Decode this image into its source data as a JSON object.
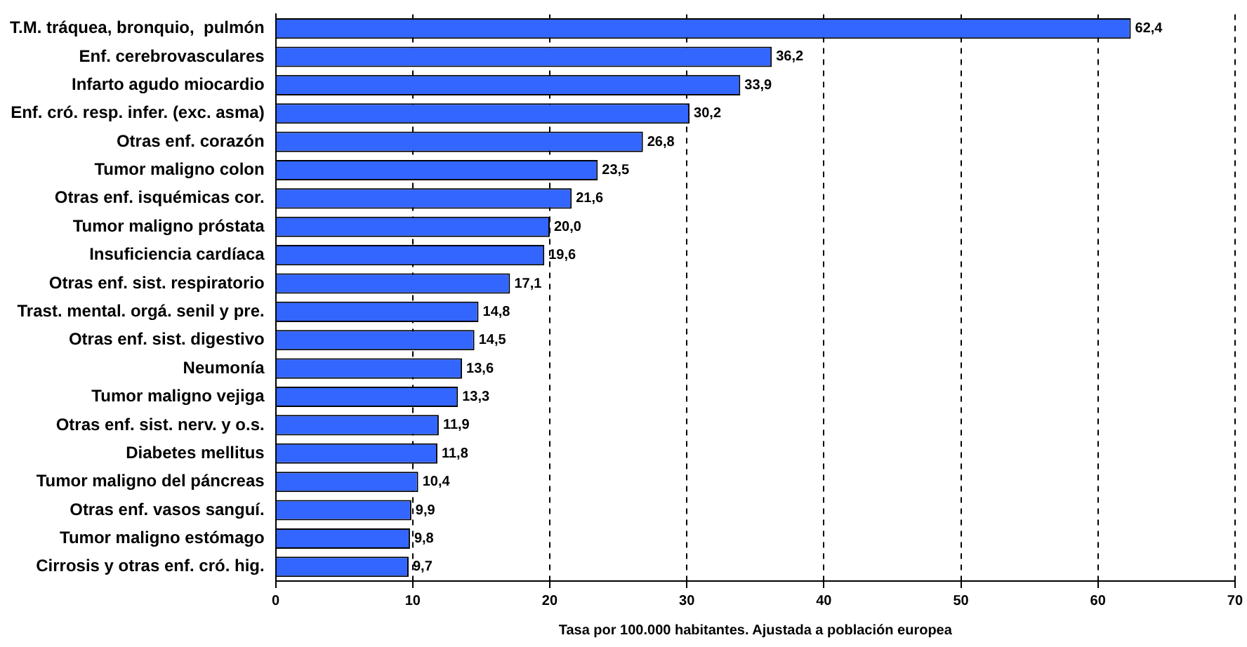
{
  "chart_data": {
    "type": "bar",
    "orientation": "horizontal",
    "xlabel": "Tasa por 100.000 habitantes. Ajustada a población europea",
    "categories": [
      "T.M. tráquea, bronquio,  pulmón",
      "Enf. cerebrovasculares",
      "Infarto agudo miocardio",
      "Enf. cró. resp. infer. (exc. asma)",
      "Otras enf. corazón",
      "Tumor maligno colon",
      "Otras enf. isquémicas cor.",
      "Tumor maligno próstata",
      "Insuficiencia cardíaca",
      "Otras enf. sist. respiratorio",
      "Trast. mental. orgá. senil y pre.",
      "Otras enf. sist. digestivo",
      "Neumonía",
      "Tumor maligno vejiga",
      "Otras enf. sist. nerv. y o.s.",
      "Diabetes mellitus",
      "Tumor maligno del páncreas",
      "Otras enf. vasos sanguí.",
      "Tumor maligno estómago",
      "Cirrosis y otras enf. cró. hig."
    ],
    "values": [
      62.4,
      36.2,
      33.9,
      30.2,
      26.8,
      23.5,
      21.6,
      20.0,
      19.6,
      17.1,
      14.8,
      14.5,
      13.6,
      13.3,
      11.9,
      11.8,
      10.4,
      9.9,
      9.8,
      9.7
    ],
    "value_labels": [
      "62,4",
      "36,2",
      "33,9",
      "30,2",
      "26,8",
      "23,5",
      "21,6",
      "20,0",
      "19,6",
      "17,1",
      "14,8",
      "14,5",
      "13,6",
      "13,3",
      "11,9",
      "11,8",
      "10,4",
      "9,9",
      "9,8",
      "9,7"
    ],
    "color": "#3366ff",
    "xlim": [
      0,
      70
    ],
    "xticks": [
      0,
      10,
      20,
      30,
      40,
      50,
      60,
      70
    ],
    "grid": "x",
    "legend": false
  }
}
